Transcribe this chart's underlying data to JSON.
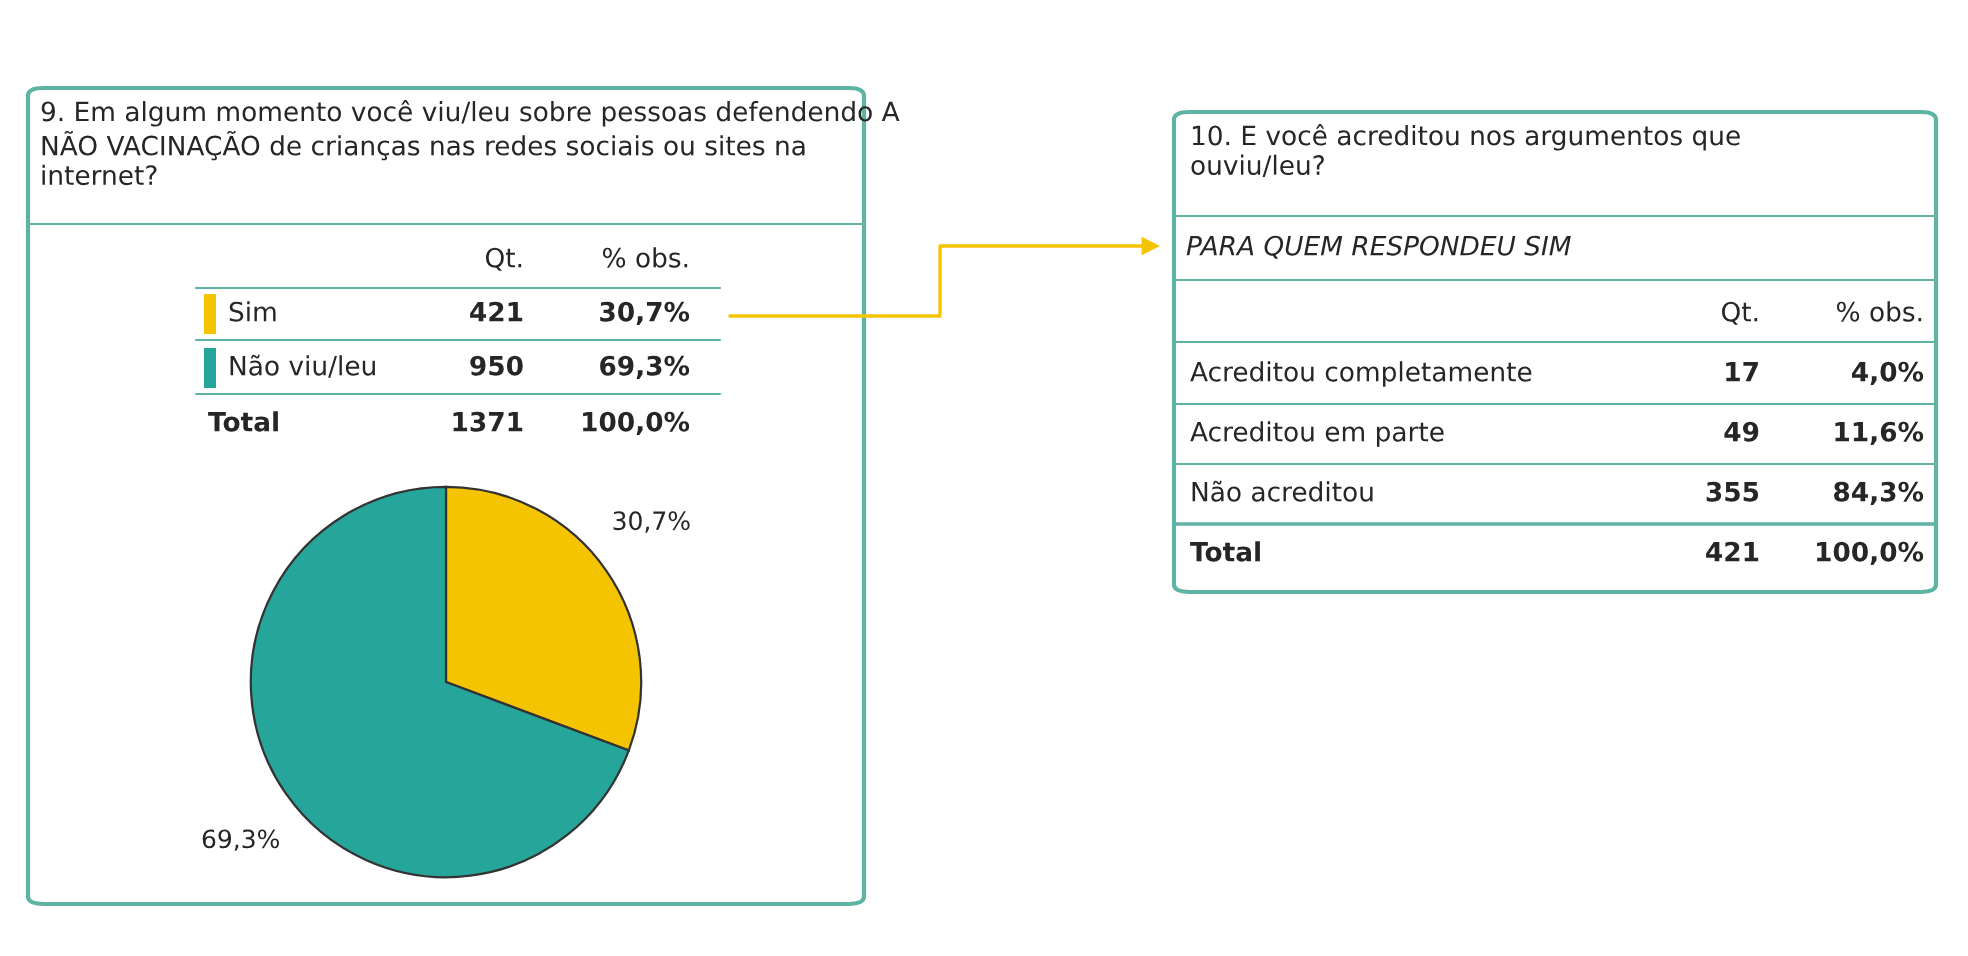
{
  "chart_data": [
    {
      "type": "pie",
      "title": "9. Em algum momento você viu/leu sobre pessoas defendendo A NÃO VACINAÇÃO de crianças nas redes sociais ou sites na internet?",
      "categories": [
        "Sim",
        "Não viu/leu"
      ],
      "values": [
        30.7,
        69.3
      ],
      "colors": [
        "#f5c400",
        "#26a69a"
      ],
      "value_labels": [
        "30,7%",
        "69,3%"
      ],
      "legend": "top left",
      "annotations": [
        "Qt.",
        "% obs.",
        "421",
        "30,7%",
        "950",
        "69,3%",
        "Total",
        "1371",
        "100,0%"
      ]
    },
    {
      "type": "other",
      "title": "10. E você acreditou nos argumentos que ouviu/leu?",
      "subtitle": "PARA QUEM RESPONDEU SIM",
      "annotations": [
        "Qt.",
        "% obs.",
        "Acreditou completamente",
        "17",
        "4,0%",
        "Acreditou em parte",
        "49",
        "11,6%",
        "Não acreditou",
        "355",
        "84,3%",
        "Total",
        "421",
        "100,0%"
      ]
    }
  ]
}
